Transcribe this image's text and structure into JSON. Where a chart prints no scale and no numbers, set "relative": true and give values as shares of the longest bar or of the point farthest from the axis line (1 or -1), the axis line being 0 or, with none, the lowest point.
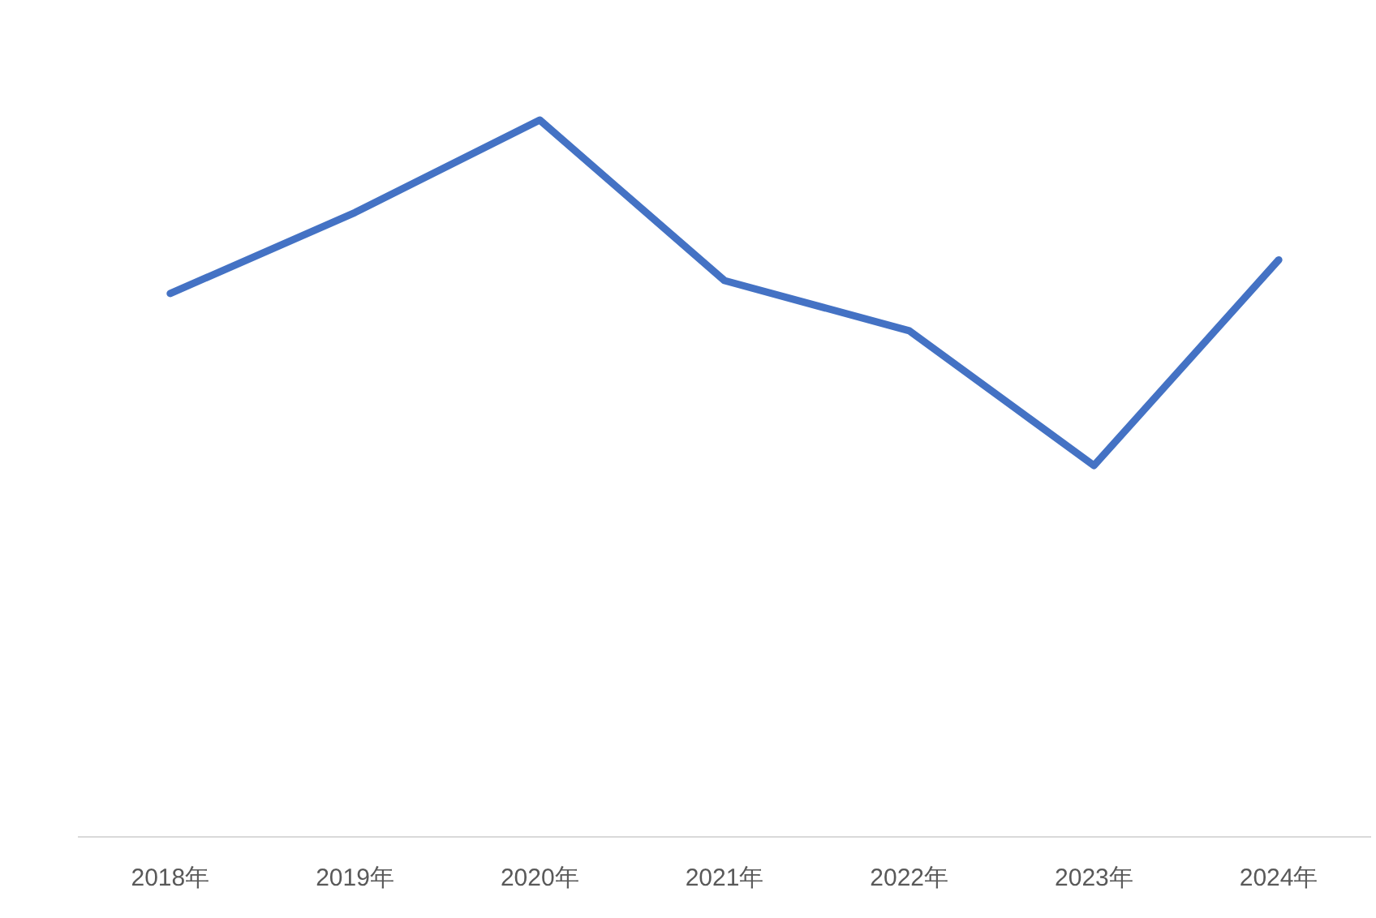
{
  "chart_data": {
    "type": "line",
    "relative": true,
    "categories": [
      "2018年",
      "2019年",
      "2020年",
      "2021年",
      "2022年",
      "2023年",
      "2024年"
    ],
    "series": [
      {
        "color": "#4472c4",
        "values": [
          0.758,
          0.871,
          1,
          0.776,
          0.706,
          0.518,
          0.805
        ]
      }
    ],
    "marker": "none",
    "line_style": "solid"
  }
}
